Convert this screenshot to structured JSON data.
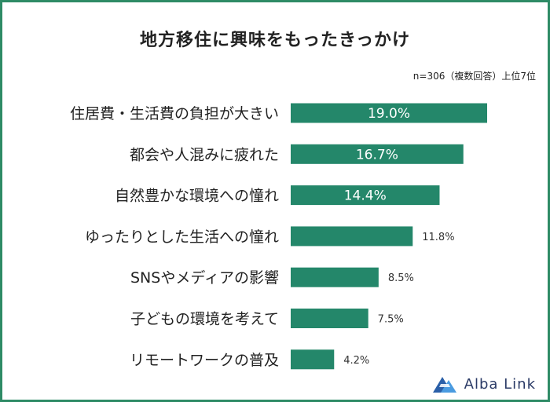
{
  "title": "地方移住に興味をもったきっかけ",
  "note": "n=306（複数回答）上位7位",
  "brand": "Alba Link",
  "colors": {
    "bar": "#24876a",
    "frame": "#2e8b66"
  },
  "chart_data": {
    "type": "bar",
    "orientation": "horizontal",
    "title": "地方移住に興味をもったきっかけ",
    "categories": [
      "住居費・生活費の負担が大きい",
      "都会や人混みに疲れた",
      "自然豊かな環境への憧れ",
      "ゆったりとした生活への憧れ",
      "SNSやメディアの影響",
      "子どもの環境を考えて",
      "リモートワークの普及"
    ],
    "values": [
      19.0,
      16.7,
      14.4,
      11.8,
      8.5,
      7.5,
      4.2
    ],
    "value_labels": [
      "19.0%",
      "16.7%",
      "14.4%",
      "11.8%",
      "8.5%",
      "7.5%",
      "4.2%"
    ],
    "unit": "%",
    "xlim": [
      0,
      19.0
    ],
    "grid": false
  }
}
